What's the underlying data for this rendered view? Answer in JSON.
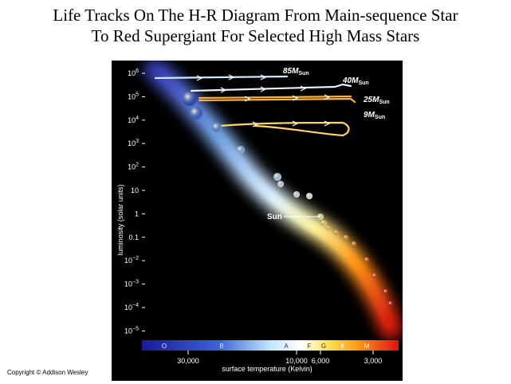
{
  "title": {
    "line1": "Life Tracks On The H-R Diagram From Main-sequence Star",
    "line2": "To Red Supergiant For Selected High Mass Stars"
  },
  "diagram": {
    "y_axis_label": "luminosity (solar units)",
    "y_ticks": [
      {
        "base": "10",
        "exp": "6"
      },
      {
        "base": "10",
        "exp": "5"
      },
      {
        "base": "10",
        "exp": "4"
      },
      {
        "base": "10",
        "exp": "3"
      },
      {
        "base": "10",
        "exp": "2"
      },
      {
        "base": "10",
        "exp": ""
      },
      {
        "base": "1",
        "exp": ""
      },
      {
        "base": "0.1",
        "exp": ""
      },
      {
        "base": "10",
        "exp": "−2"
      },
      {
        "base": "10",
        "exp": "−3"
      },
      {
        "base": "10",
        "exp": "−4"
      },
      {
        "base": "10",
        "exp": "−5"
      }
    ],
    "spectral_classes": [
      "O",
      "B",
      "A",
      "F",
      "G",
      "K",
      "M"
    ],
    "x_ticks": [
      "30,000",
      "10,000",
      "6,000",
      "3,000"
    ],
    "x_axis_label": "surface temperature (Kelvin)",
    "sun_label": "Sun",
    "tracks": [
      {
        "mass": "85",
        "symbol": "M",
        "sub": "Sun",
        "color": "#cfe6ff"
      },
      {
        "mass": "40",
        "symbol": "M",
        "sub": "Sun",
        "color": "#e9f0ff"
      },
      {
        "mass": "25",
        "symbol": "M",
        "sub": "Sun",
        "color": "#ffb13a"
      },
      {
        "mass": "9",
        "symbol": "M",
        "sub": "Sun",
        "color": "#ffd56a"
      }
    ]
  },
  "copyright": "Copyright © Addison Wesley"
}
